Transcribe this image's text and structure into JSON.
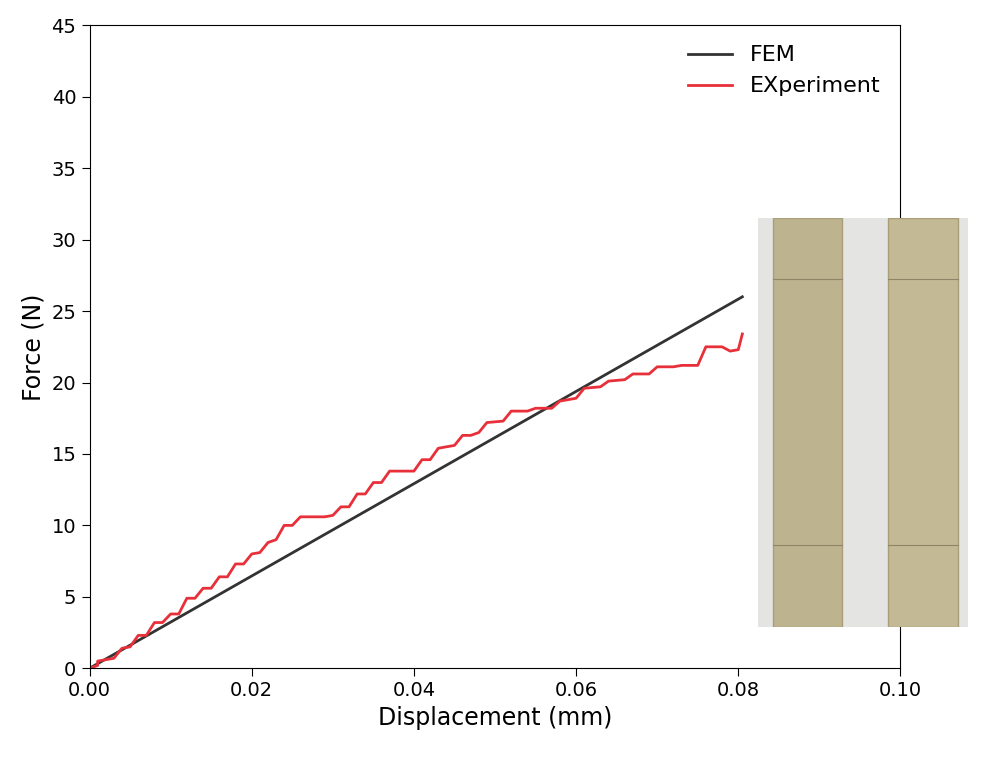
{
  "chart_data": {
    "type": "line",
    "x_label": "Displacement (mm)",
    "y_label": "Force (N)",
    "xlim": [
      0,
      0.1
    ],
    "ylim": [
      0,
      45
    ],
    "xticks": [
      {
        "value": 0,
        "label": "0.00"
      },
      {
        "value": 0.02,
        "label": "0.02"
      },
      {
        "value": 0.04,
        "label": "0.04"
      },
      {
        "value": 0.06,
        "label": "0.06"
      },
      {
        "value": 0.08,
        "label": "0.08"
      },
      {
        "value": 0.1,
        "label": "0.10"
      }
    ],
    "yticks": [
      0,
      5,
      10,
      15,
      20,
      25,
      30,
      35,
      40,
      45
    ],
    "legend": "upper right",
    "grid": false,
    "series": [
      {
        "name": "FEM",
        "color": "#333333",
        "line_style": "solid",
        "x": [
          0,
          0.0805
        ],
        "values": [
          0,
          26
        ]
      },
      {
        "name": "EXperiment",
        "color": "#e8303a",
        "line_style": "solid",
        "x": [
          0,
          0.001,
          0.001,
          0.003,
          0.004,
          0.005,
          0.006,
          0.007,
          0.008,
          0.009,
          0.01,
          0.011,
          0.012,
          0.013,
          0.014,
          0.015,
          0.016,
          0.017,
          0.018,
          0.019,
          0.02,
          0.021,
          0.022,
          0.023,
          0.024,
          0.025,
          0.026,
          0.029,
          0.03,
          0.031,
          0.032,
          0.033,
          0.034,
          0.035,
          0.036,
          0.037,
          0.04,
          0.041,
          0.042,
          0.043,
          0.045,
          0.046,
          0.047,
          0.048,
          0.049,
          0.051,
          0.052,
          0.054,
          0.055,
          0.057,
          0.058,
          0.06,
          0.061,
          0.063,
          0.064,
          0.066,
          0.067,
          0.069,
          0.07,
          0.072,
          0.073,
          0.075,
          0.076,
          0.078,
          0.079,
          0.08,
          0.0805
        ],
        "values": [
          0,
          0.2,
          0.5,
          0.7,
          1.4,
          1.5,
          2.3,
          2.3,
          3.2,
          3.2,
          3.8,
          3.8,
          4.9,
          4.9,
          5.6,
          5.6,
          6.4,
          6.4,
          7.3,
          7.3,
          8.0,
          8.1,
          8.8,
          9.0,
          10.0,
          10.0,
          10.6,
          10.6,
          10.7,
          11.3,
          11.3,
          12.2,
          12.2,
          13.0,
          13.0,
          13.8,
          13.8,
          14.6,
          14.6,
          15.4,
          15.6,
          16.3,
          16.3,
          16.5,
          17.2,
          17.3,
          18.0,
          18.0,
          18.2,
          18.2,
          18.7,
          18.9,
          19.6,
          19.7,
          20.1,
          20.2,
          20.6,
          20.6,
          21.1,
          21.1,
          21.2,
          21.2,
          22.5,
          22.5,
          22.2,
          22.3,
          23.4
        ]
      }
    ]
  }
}
